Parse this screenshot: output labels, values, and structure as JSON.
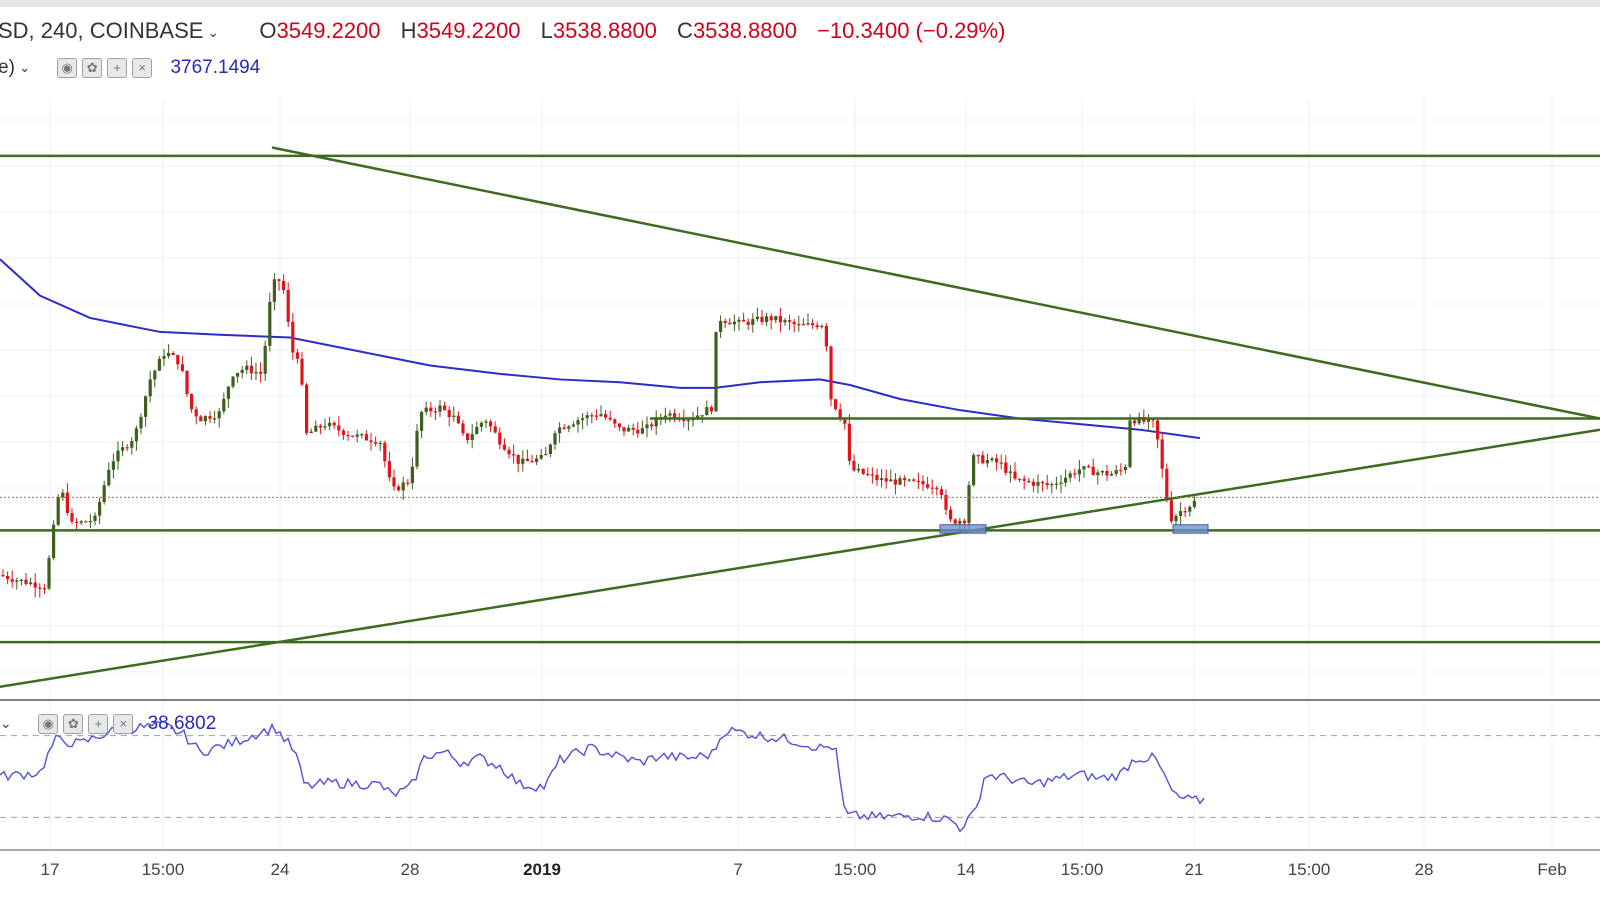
{
  "header": {
    "symbol": "SD, 240, COINBASE",
    "open_label": "O",
    "open": "3549.2200",
    "high_label": "H",
    "high": "3549.2200",
    "low_label": "L",
    "low": "3538.8800",
    "close_label": "C",
    "close": "3538.8800",
    "change": "−10.3400 (−0.29%)"
  },
  "ma_row": {
    "label": "e)",
    "value": "3767.1494",
    "icons": [
      "eye-icon",
      "gear-icon",
      "plus-icon",
      "close-icon"
    ]
  },
  "rsi_row": {
    "value": "38.6802",
    "icons": [
      "eye-icon",
      "gear-icon",
      "plus-icon",
      "close-icon"
    ]
  },
  "chart_data": {
    "type": "candlestick",
    "instrument": "SD, 240, COINBASE",
    "interval": "240",
    "x_ticks": [
      {
        "label": "17",
        "bold": false
      },
      {
        "label": "15:00",
        "bold": false
      },
      {
        "label": "24",
        "bold": false
      },
      {
        "label": "28",
        "bold": false
      },
      {
        "label": "2019",
        "bold": true
      },
      {
        "label": "7",
        "bold": false
      },
      {
        "label": "15:00",
        "bold": false
      },
      {
        "label": "14",
        "bold": false
      },
      {
        "label": "15:00",
        "bold": false
      },
      {
        "label": "21",
        "bold": false
      },
      {
        "label": "15:00",
        "bold": false
      },
      {
        "label": "28",
        "bold": false
      },
      {
        "label": "Feb",
        "bold": false
      }
    ],
    "last_close": 3538.88,
    "moving_average_last": 3767.1494,
    "rsi_last": 38.6802,
    "rsi_guides": [
      70,
      30
    ],
    "horizontal_levels": [
      4150,
      3680,
      3480,
      3280
    ],
    "trendlines": [
      {
        "name": "upper-descending",
        "from": [
          "24",
          4165
        ],
        "to": [
          "Feb",
          3680
        ]
      },
      {
        "name": "lower-ascending",
        "from": [
          "17",
          3200
        ],
        "to": [
          "Feb",
          3660
        ]
      }
    ],
    "highlighted_zones": [
      {
        "near": "14",
        "low": 3475,
        "high": 3490
      },
      {
        "near": "21",
        "low": 3475,
        "high": 3490
      }
    ],
    "grid": true,
    "colors": {
      "up": "#3e5f1d",
      "down": "#e0141b",
      "ma": "#2c2cc8",
      "rsi": "#5050d8",
      "levels": "#3d6b1f",
      "zone_fill": "#6d8bc9",
      "last_price": "#e05050"
    }
  }
}
